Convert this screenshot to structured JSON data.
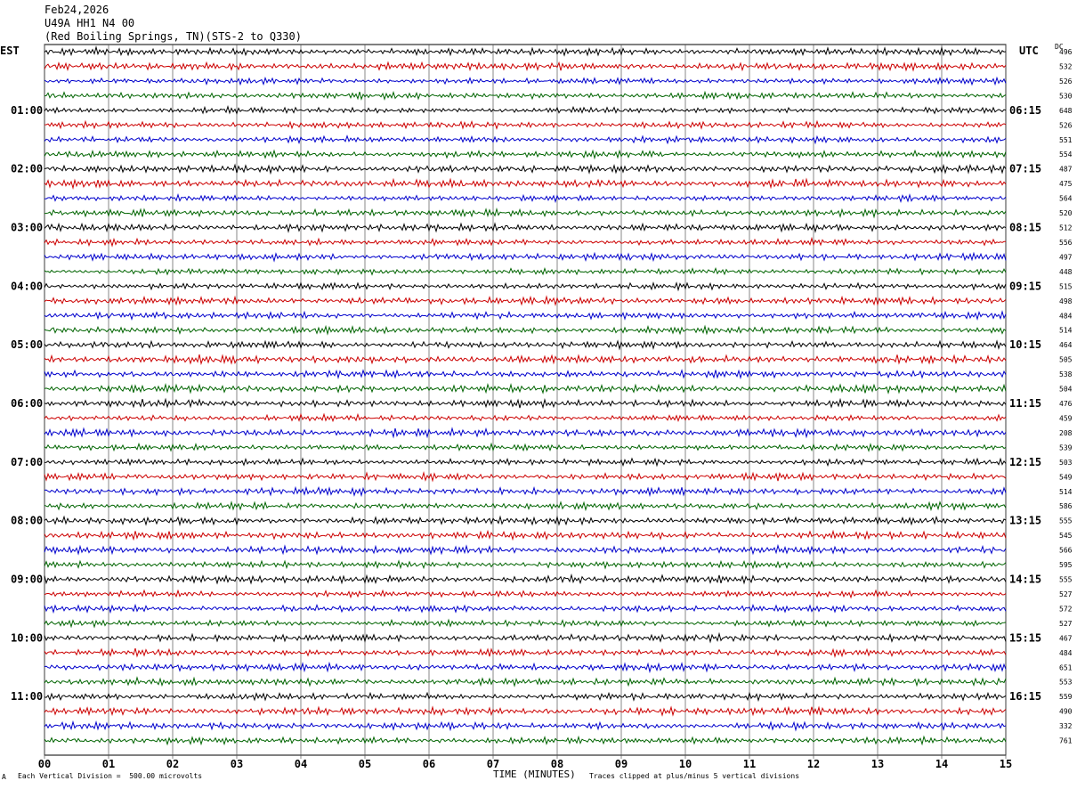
{
  "header": {
    "date": "Feb24,2026",
    "station": "U49A HH1 N4 00",
    "location": "(Red Boiling Springs, TN)(STS-2 to Q330)"
  },
  "left_tz": "EST",
  "right_tz": "UTC",
  "dc_label": "DC",
  "footer": {
    "left": "Each Vertical Division =  500.00 microvolts",
    "center": "TIME (MINUTES)",
    "right": "Traces clipped at plus/minus 5 vertical divisions",
    "mark": "A"
  },
  "colors": {
    "trace_cycle": [
      "#000000",
      "#cc0000",
      "#0000cc",
      "#006400"
    ],
    "grid": "#000000"
  },
  "chart_data": {
    "type": "line",
    "title": "",
    "xlabel": "TIME (MINUTES)",
    "ylabel": "",
    "xlim": [
      0,
      15
    ],
    "x_ticks": [
      "00",
      "01",
      "02",
      "03",
      "04",
      "05",
      "06",
      "07",
      "08",
      "09",
      "10",
      "11",
      "12",
      "13",
      "14",
      "15"
    ],
    "rows_per_hour": 4,
    "left_hour_labels": [
      "01:00",
      "02:00",
      "03:00",
      "04:00",
      "05:00",
      "06:00",
      "07:00",
      "08:00",
      "09:00",
      "10:00",
      "11:00"
    ],
    "right_hour_labels": [
      "06:15",
      "07:15",
      "08:15",
      "09:15",
      "10:15",
      "11:15",
      "12:15",
      "13:15",
      "14:15",
      "15:15",
      "16:15"
    ],
    "dc_offsets": [
      "496",
      "532",
      "526",
      "530",
      "648",
      "526",
      "551",
      "554",
      "487",
      "475",
      "564",
      "520",
      "512",
      "556",
      "497",
      "448",
      "515",
      "498",
      "484",
      "514",
      "464",
      "505",
      "538",
      "504",
      "476",
      "459",
      "208",
      "539",
      "503",
      "549",
      "514",
      "586",
      "555",
      "545",
      "566",
      "595",
      "555",
      "527",
      "572",
      "527",
      "467",
      "484",
      "651",
      "553",
      "559",
      "490",
      "332",
      "761"
    ]
  }
}
